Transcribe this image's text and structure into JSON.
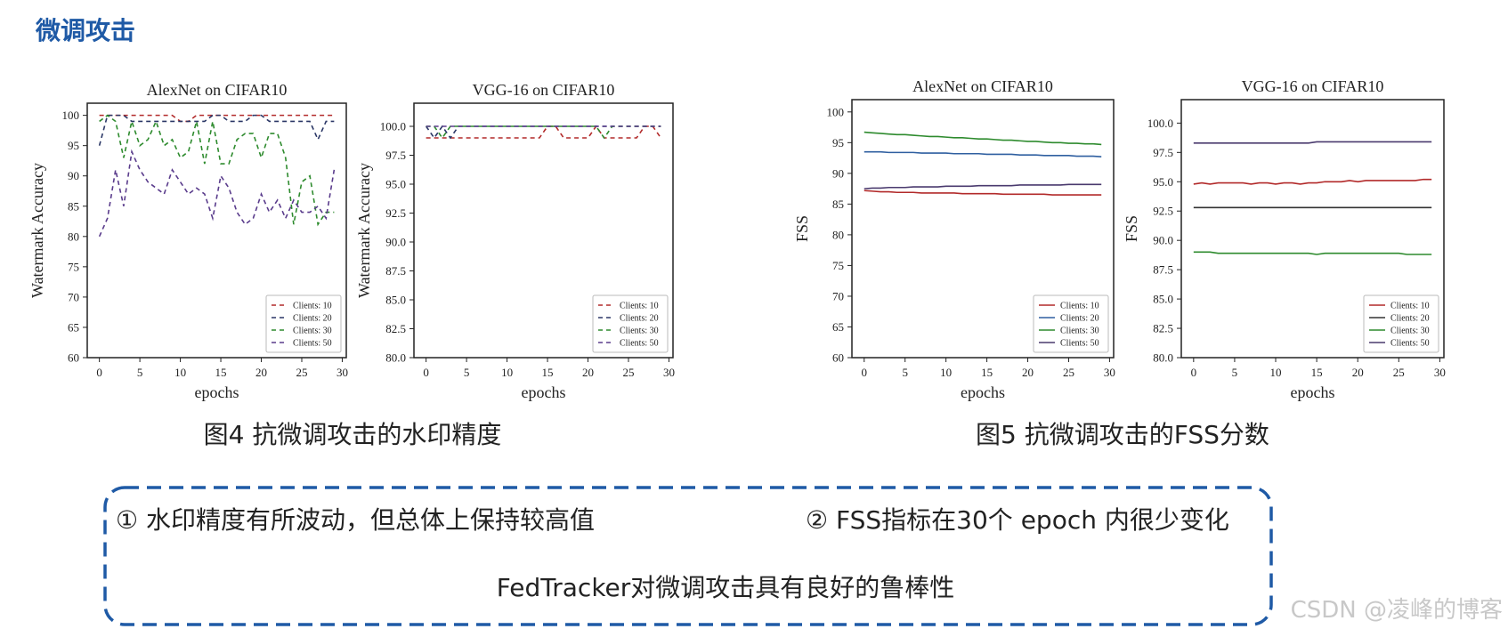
{
  "header": {
    "title": "微调攻击"
  },
  "chart_data": [
    {
      "type": "line",
      "title": "AlexNet on CIFAR10",
      "xlabel": "epochs",
      "ylabel": "Watermark Accuracy",
      "line_style": "dashed",
      "legend": "lower right",
      "x": [
        0,
        1,
        2,
        3,
        4,
        5,
        6,
        7,
        8,
        9,
        10,
        11,
        12,
        13,
        14,
        15,
        16,
        17,
        18,
        19,
        20,
        21,
        22,
        23,
        24,
        25,
        26,
        27,
        28,
        29
      ],
      "xlim": [
        -1.5,
        30.5
      ],
      "xticks": [
        0,
        5,
        10,
        15,
        20,
        25,
        30
      ],
      "ylim": [
        60,
        102
      ],
      "yticks": [
        60,
        65,
        70,
        75,
        80,
        85,
        90,
        95,
        100
      ],
      "series": [
        {
          "name": "Clients: 10",
          "color": "#b22a2a",
          "values": [
            100,
            100,
            100,
            100,
            100,
            100,
            100,
            100,
            100,
            100,
            99,
            99,
            100,
            100,
            100,
            100,
            100,
            100,
            100,
            100,
            100,
            100,
            100,
            100,
            100,
            100,
            100,
            100,
            100,
            100
          ]
        },
        {
          "name": "Clients: 20",
          "color": "#2b3766",
          "values": [
            95,
            100,
            100,
            100,
            99,
            99,
            99,
            99,
            99,
            99,
            99,
            99,
            99,
            99,
            100,
            100,
            99,
            99,
            99,
            100,
            100,
            99,
            99,
            99,
            99,
            99,
            99,
            96,
            99,
            99
          ]
        },
        {
          "name": "Clients: 30",
          "color": "#2e8b2e",
          "values": [
            99,
            100,
            99,
            93,
            99,
            95,
            96,
            99,
            95,
            96,
            93,
            94,
            99,
            92,
            99,
            92,
            92,
            96,
            97,
            97,
            93,
            97,
            97,
            93,
            82,
            89,
            90,
            82,
            84,
            84
          ]
        },
        {
          "name": "Clients: 50",
          "color": "#5a3c8c",
          "values": [
            80,
            83,
            91,
            85,
            94,
            91,
            89,
            88,
            87,
            91,
            89,
            87,
            88,
            87,
            83,
            90,
            88,
            84,
            82,
            83,
            87,
            84,
            86,
            83,
            86,
            84,
            84,
            85,
            83,
            91
          ]
        }
      ]
    },
    {
      "type": "line",
      "title": "VGG-16 on CIFAR10",
      "xlabel": "epochs",
      "ylabel": "Watermark Accuracy",
      "line_style": "dashed",
      "legend": "lower right",
      "x": [
        0,
        1,
        2,
        3,
        4,
        5,
        6,
        7,
        8,
        9,
        10,
        11,
        12,
        13,
        14,
        15,
        16,
        17,
        18,
        19,
        20,
        21,
        22,
        23,
        24,
        25,
        26,
        27,
        28,
        29
      ],
      "xlim": [
        -1.5,
        30.5
      ],
      "xticks": [
        0,
        5,
        10,
        15,
        20,
        25,
        30
      ],
      "ylim": [
        80,
        102
      ],
      "yticks": [
        {
          "value": 80,
          "label": "80.0"
        },
        {
          "value": 82.5,
          "label": "82.5"
        },
        {
          "value": 85,
          "label": "85.0"
        },
        {
          "value": 87.5,
          "label": "87.5"
        },
        {
          "value": 90,
          "label": "90.0"
        },
        {
          "value": 92.5,
          "label": "92.5"
        },
        {
          "value": 95,
          "label": "95.0"
        },
        {
          "value": 97.5,
          "label": "97.5"
        },
        {
          "value": 100,
          "label": "100.0"
        }
      ],
      "series": [
        {
          "name": "Clients: 10",
          "color": "#b22a2a",
          "values": [
            99,
            99,
            99,
            99,
            99,
            99,
            99,
            99,
            99,
            99,
            99,
            99,
            99,
            99,
            99,
            100,
            100,
            99,
            99,
            99,
            99,
            100,
            99,
            99,
            99,
            99,
            99,
            100,
            100,
            99
          ]
        },
        {
          "name": "Clients: 20",
          "color": "#2b3766",
          "values": [
            100,
            99,
            100,
            99,
            100,
            100,
            100,
            100,
            100,
            100,
            100,
            100,
            100,
            100,
            100,
            100,
            100,
            100,
            100,
            100,
            100,
            100,
            100,
            100,
            100,
            100,
            100,
            100,
            100,
            100
          ]
        },
        {
          "name": "Clients: 30",
          "color": "#2e8b2e",
          "values": [
            100,
            100,
            99,
            100,
            100,
            100,
            100,
            100,
            100,
            100,
            100,
            100,
            100,
            100,
            100,
            100,
            100,
            100,
            100,
            100,
            100,
            100,
            99,
            100,
            100,
            100,
            100,
            100,
            100,
            100
          ]
        },
        {
          "name": "Clients: 50",
          "color": "#5a3c8c",
          "values": [
            100,
            100,
            100,
            100,
            100,
            100,
            100,
            100,
            100,
            100,
            100,
            100,
            100,
            100,
            100,
            100,
            100,
            100,
            100,
            100,
            100,
            100,
            100,
            100,
            100,
            100,
            100,
            100,
            100,
            100
          ]
        }
      ]
    },
    {
      "type": "line",
      "title": "AlexNet on CIFAR10",
      "xlabel": "epochs",
      "ylabel": "FSS",
      "line_style": "solid",
      "legend": "lower right",
      "x": [
        0,
        1,
        2,
        3,
        4,
        5,
        6,
        7,
        8,
        9,
        10,
        11,
        12,
        13,
        14,
        15,
        16,
        17,
        18,
        19,
        20,
        21,
        22,
        23,
        24,
        25,
        26,
        27,
        28,
        29
      ],
      "xlim": [
        -1.5,
        30.5
      ],
      "xticks": [
        0,
        5,
        10,
        15,
        20,
        25,
        30
      ],
      "ylim": [
        60,
        102
      ],
      "yticks": [
        60,
        65,
        70,
        75,
        80,
        85,
        90,
        95,
        100
      ],
      "series": [
        {
          "name": "Clients: 10",
          "color": "#b22a2a",
          "values": [
            87.2,
            87.1,
            87.0,
            87.0,
            86.9,
            86.9,
            86.9,
            86.8,
            86.8,
            86.8,
            86.8,
            86.8,
            86.7,
            86.7,
            86.7,
            86.7,
            86.7,
            86.6,
            86.6,
            86.6,
            86.6,
            86.6,
            86.6,
            86.5,
            86.5,
            86.5,
            86.5,
            86.5,
            86.5,
            86.5
          ]
        },
        {
          "name": "Clients: 20",
          "color": "#2f5fa0",
          "values": [
            93.5,
            93.5,
            93.5,
            93.4,
            93.4,
            93.4,
            93.4,
            93.3,
            93.3,
            93.3,
            93.3,
            93.2,
            93.2,
            93.2,
            93.2,
            93.1,
            93.1,
            93.1,
            93.1,
            93.0,
            93.0,
            93.0,
            92.9,
            92.9,
            92.9,
            92.9,
            92.8,
            92.8,
            92.8,
            92.7
          ]
        },
        {
          "name": "Clients: 30",
          "color": "#2e8b2e",
          "values": [
            96.7,
            96.6,
            96.5,
            96.4,
            96.3,
            96.3,
            96.2,
            96.1,
            96.0,
            96.0,
            95.9,
            95.8,
            95.8,
            95.7,
            95.6,
            95.6,
            95.5,
            95.4,
            95.4,
            95.3,
            95.2,
            95.2,
            95.1,
            95.0,
            95.0,
            94.9,
            94.9,
            94.8,
            94.8,
            94.7
          ]
        },
        {
          "name": "Clients: 50",
          "color": "#4a3a6e",
          "values": [
            87.5,
            87.6,
            87.6,
            87.7,
            87.7,
            87.7,
            87.8,
            87.8,
            87.8,
            87.8,
            87.9,
            87.9,
            87.9,
            87.9,
            88.0,
            88.0,
            88.0,
            88.0,
            88.0,
            88.1,
            88.1,
            88.1,
            88.1,
            88.1,
            88.1,
            88.2,
            88.2,
            88.2,
            88.2,
            88.2
          ]
        }
      ]
    },
    {
      "type": "line",
      "title": "VGG-16 on CIFAR10",
      "xlabel": "epochs",
      "ylabel": "FSS",
      "line_style": "solid",
      "legend": "lower right",
      "x": [
        0,
        1,
        2,
        3,
        4,
        5,
        6,
        7,
        8,
        9,
        10,
        11,
        12,
        13,
        14,
        15,
        16,
        17,
        18,
        19,
        20,
        21,
        22,
        23,
        24,
        25,
        26,
        27,
        28,
        29
      ],
      "xlim": [
        -1.5,
        30.5
      ],
      "xticks": [
        0,
        5,
        10,
        15,
        20,
        25,
        30
      ],
      "ylim": [
        80,
        102
      ],
      "yticks": [
        {
          "value": 80,
          "label": "80.0"
        },
        {
          "value": 82.5,
          "label": "82.5"
        },
        {
          "value": 85,
          "label": "85.0"
        },
        {
          "value": 87.5,
          "label": "87.5"
        },
        {
          "value": 90,
          "label": "90.0"
        },
        {
          "value": 92.5,
          "label": "92.5"
        },
        {
          "value": 95,
          "label": "95.0"
        },
        {
          "value": 97.5,
          "label": "97.5"
        },
        {
          "value": 100,
          "label": "100.0"
        }
      ],
      "series": [
        {
          "name": "Clients: 10",
          "color": "#b22a2a",
          "values": [
            94.8,
            94.9,
            94.8,
            94.9,
            94.9,
            94.9,
            94.9,
            94.8,
            94.9,
            94.9,
            94.8,
            94.9,
            94.9,
            94.8,
            94.9,
            94.9,
            95.0,
            95.0,
            95.0,
            95.1,
            95.0,
            95.1,
            95.1,
            95.1,
            95.1,
            95.1,
            95.1,
            95.1,
            95.2,
            95.2
          ]
        },
        {
          "name": "Clients: 20",
          "color": "#333333",
          "values": [
            92.8,
            92.8,
            92.8,
            92.8,
            92.8,
            92.8,
            92.8,
            92.8,
            92.8,
            92.8,
            92.8,
            92.8,
            92.8,
            92.8,
            92.8,
            92.8,
            92.8,
            92.8,
            92.8,
            92.8,
            92.8,
            92.8,
            92.8,
            92.8,
            92.8,
            92.8,
            92.8,
            92.8,
            92.8,
            92.8
          ]
        },
        {
          "name": "Clients: 30",
          "color": "#2e8b2e",
          "values": [
            89.0,
            89.0,
            89.0,
            88.9,
            88.9,
            88.9,
            88.9,
            88.9,
            88.9,
            88.9,
            88.9,
            88.9,
            88.9,
            88.9,
            88.9,
            88.8,
            88.9,
            88.9,
            88.9,
            88.9,
            88.9,
            88.9,
            88.9,
            88.9,
            88.9,
            88.9,
            88.8,
            88.8,
            88.8,
            88.8
          ]
        },
        {
          "name": "Clients: 50",
          "color": "#4a3a6e",
          "values": [
            98.3,
            98.3,
            98.3,
            98.3,
            98.3,
            98.3,
            98.3,
            98.3,
            98.3,
            98.3,
            98.3,
            98.3,
            98.3,
            98.3,
            98.3,
            98.4,
            98.4,
            98.4,
            98.4,
            98.4,
            98.4,
            98.4,
            98.4,
            98.4,
            98.4,
            98.4,
            98.4,
            98.4,
            98.4,
            98.4
          ]
        }
      ]
    }
  ],
  "captions": [
    "图4  抗微调攻击的水印精度",
    "图5  抗微调攻击的FSS分数"
  ],
  "notes": [
    "① 水印精度有所波动，但总体上保持较高值",
    "② FSS指标在30个 epoch 内很少变化"
  ],
  "conclusion": "FedTracker对微调攻击具有良好的鲁棒性",
  "watermark": "CSDN @凌峰的博客"
}
